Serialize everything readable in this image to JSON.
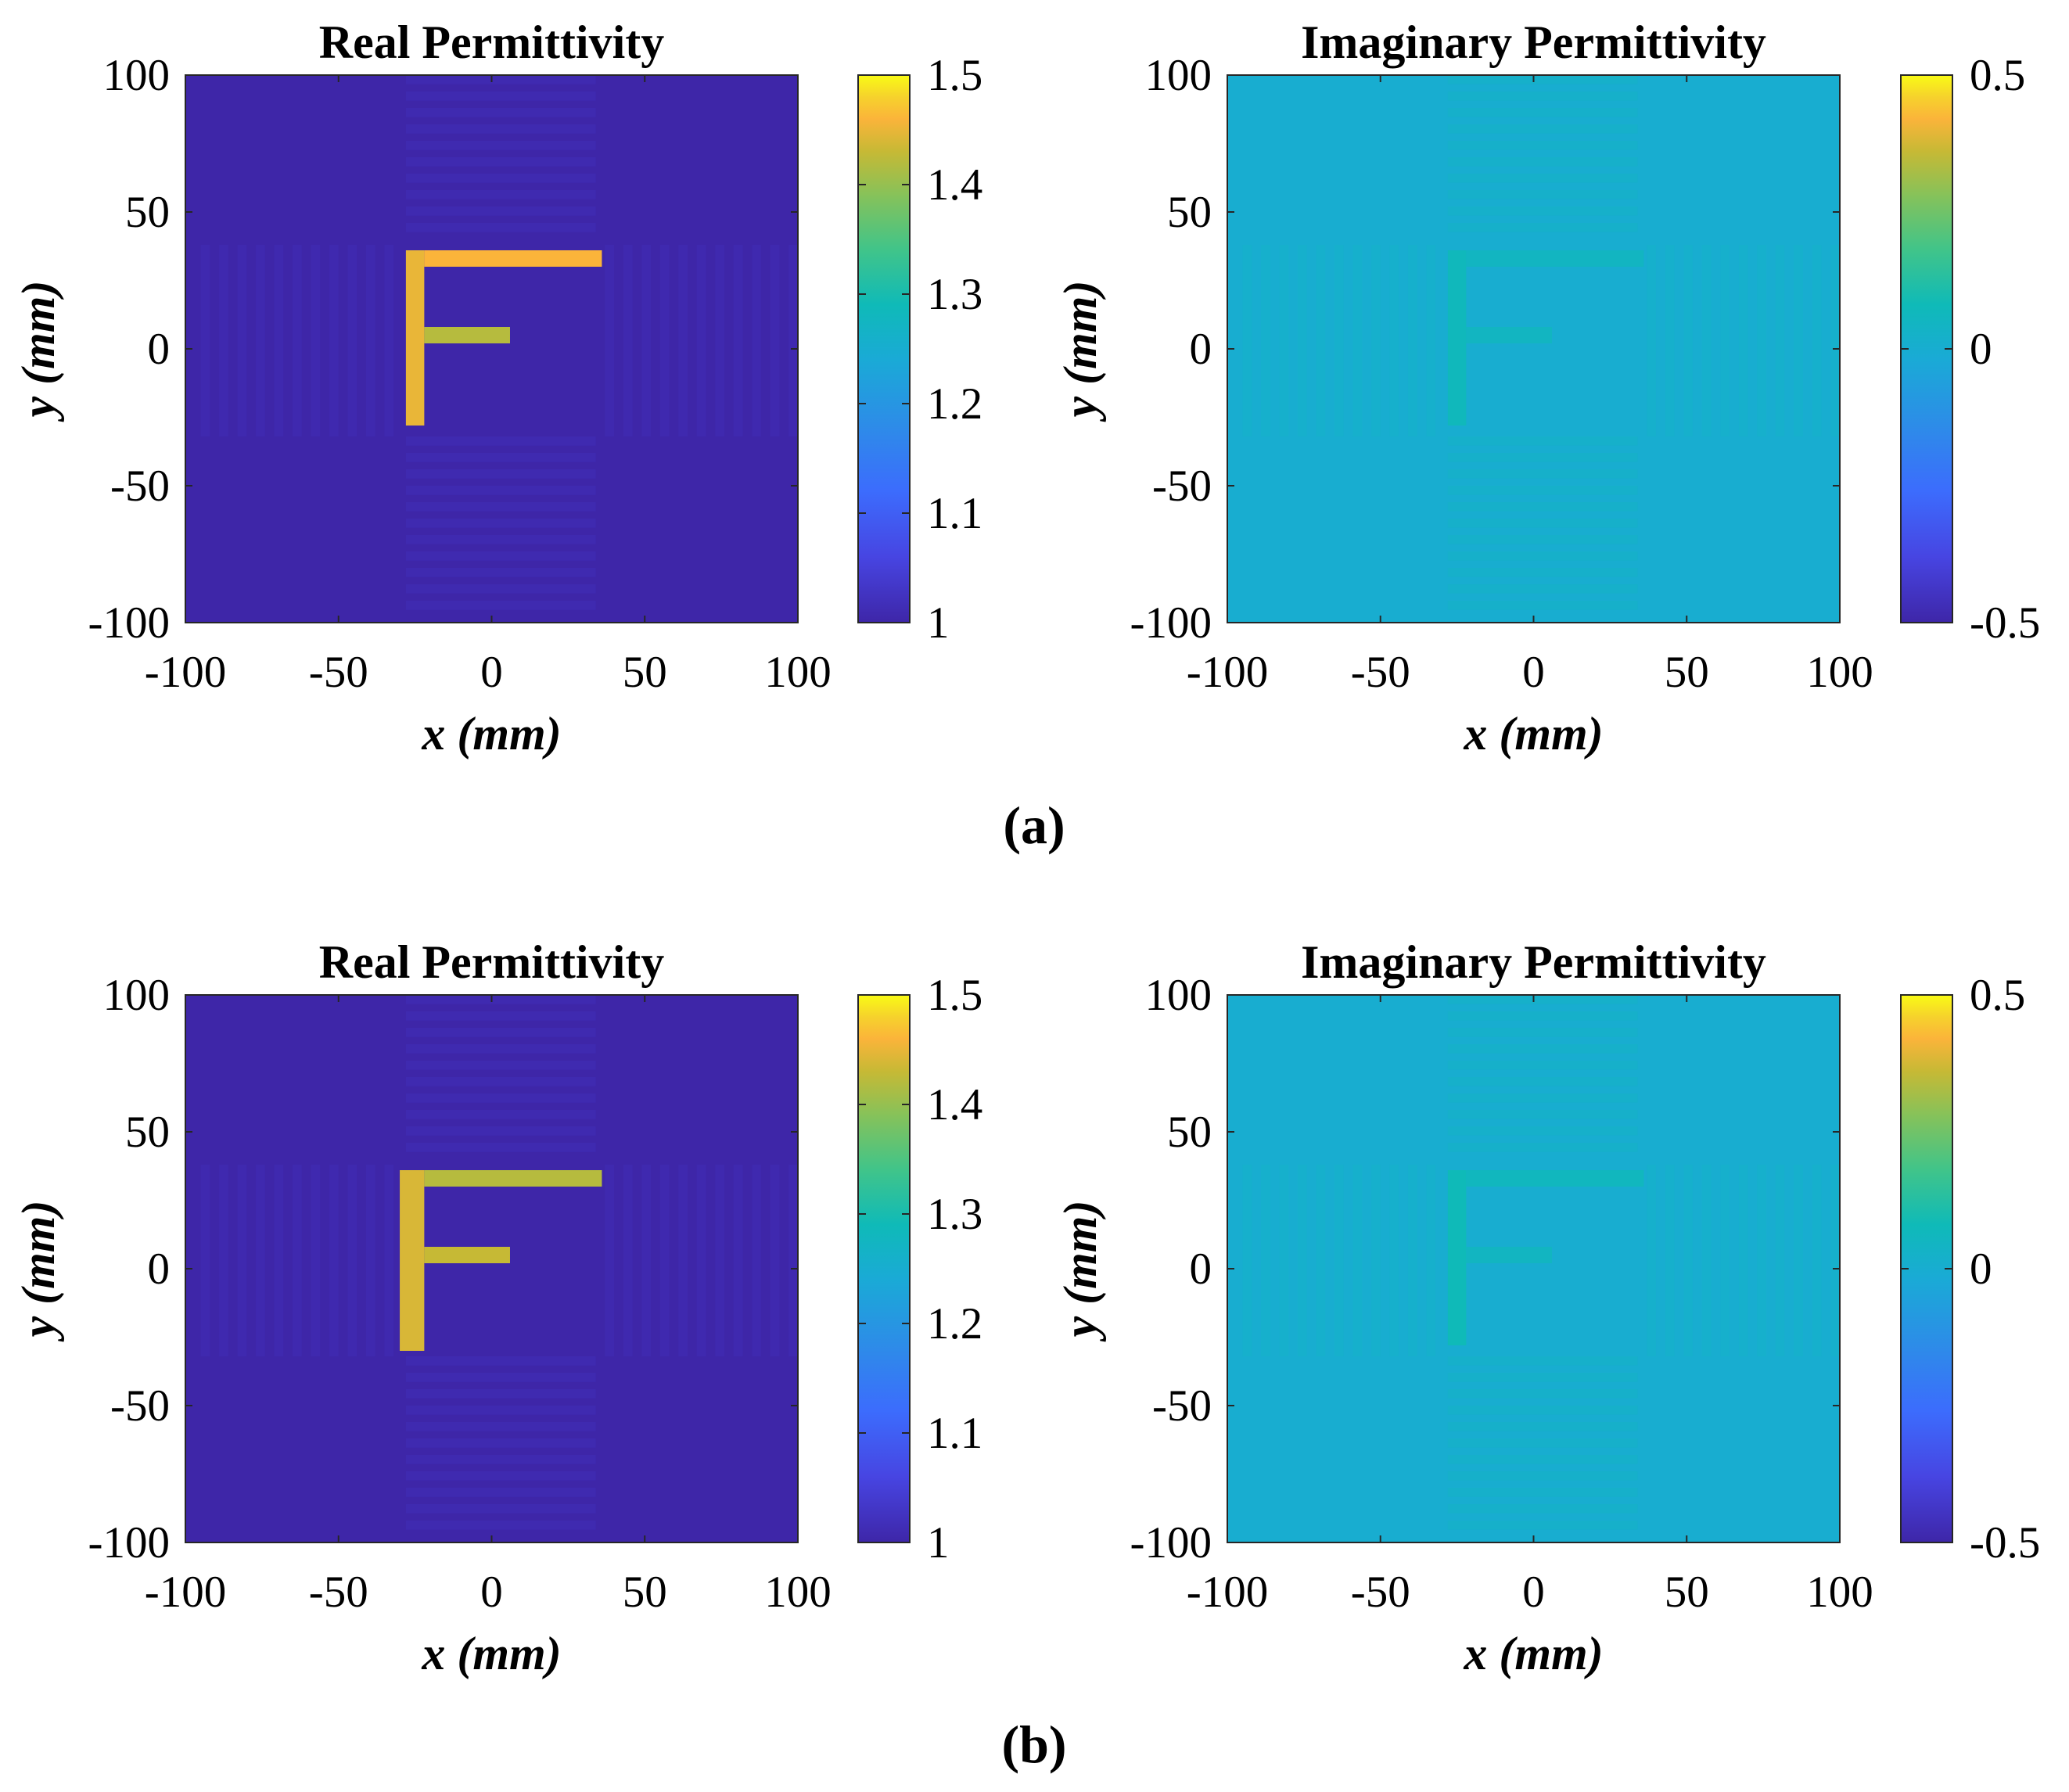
{
  "figure": {
    "captions": [
      "(a)",
      "(b)"
    ]
  },
  "chart_data": [
    {
      "type": "heatmap",
      "panel": "a",
      "title": "Real Permittivity",
      "xlabel": "x (mm)",
      "ylabel": "y (mm)",
      "xlim": [
        -100,
        100
      ],
      "ylim": [
        -100,
        100
      ],
      "xticks": [
        "-100",
        "-50",
        "0",
        "50",
        "100"
      ],
      "yticks": [
        "100",
        "50",
        "0",
        "-50",
        "-100"
      ],
      "xtick_values": [
        -100,
        -50,
        0,
        50,
        100
      ],
      "ytick_values": [
        100,
        50,
        0,
        -50,
        -100
      ],
      "colorbar": {
        "range": [
          1,
          1.5
        ],
        "ticks": [
          "1.5",
          "1.4",
          "1.3",
          "1.2",
          "1.1",
          "1"
        ],
        "tick_values": [
          1.5,
          1.4,
          1.3,
          1.2,
          1.1,
          1
        ]
      },
      "colormap": "parula",
      "background_value": 1.0,
      "features": [
        {
          "part": "vertical-bar",
          "x_range": [
            -28,
            -22
          ],
          "y_range": [
            -28,
            36
          ],
          "value": 1.45
        },
        {
          "part": "top-bar",
          "x_range": [
            -22,
            36
          ],
          "y_range": [
            30,
            36
          ],
          "value": 1.46
        },
        {
          "part": "middle-bar",
          "x_range": [
            -22,
            6
          ],
          "y_range": [
            2,
            8
          ],
          "value": 1.42
        }
      ]
    },
    {
      "type": "heatmap",
      "panel": "a",
      "title": "Imaginary Permittivity",
      "xlabel": "x (mm)",
      "ylabel": "y (mm)",
      "xlim": [
        -100,
        100
      ],
      "ylim": [
        -100,
        100
      ],
      "xticks": [
        "-100",
        "-50",
        "0",
        "50",
        "100"
      ],
      "yticks": [
        "100",
        "50",
        "0",
        "-50",
        "-100"
      ],
      "xtick_values": [
        -100,
        -50,
        0,
        50,
        100
      ],
      "ytick_values": [
        100,
        50,
        0,
        -50,
        -100
      ],
      "colorbar": {
        "range": [
          -0.5,
          0.5
        ],
        "ticks": [
          "0.5",
          "0",
          "-0.5"
        ],
        "tick_values": [
          0.5,
          0,
          -0.5
        ]
      },
      "colormap": "parula",
      "background_value": 0.0,
      "features": [
        {
          "part": "vertical-bar",
          "x_range": [
            -28,
            -22
          ],
          "y_range": [
            -28,
            36
          ],
          "value": 0.07
        },
        {
          "part": "top-bar",
          "x_range": [
            -22,
            36
          ],
          "y_range": [
            30,
            36
          ],
          "value": 0.05
        },
        {
          "part": "middle-bar",
          "x_range": [
            -22,
            6
          ],
          "y_range": [
            2,
            8
          ],
          "value": 0.05
        }
      ]
    },
    {
      "type": "heatmap",
      "panel": "b",
      "title": "Real Permittivity",
      "xlabel": "x (mm)",
      "ylabel": "y (mm)",
      "xlim": [
        -100,
        100
      ],
      "ylim": [
        -100,
        100
      ],
      "xticks": [
        "-100",
        "-50",
        "0",
        "50",
        "100"
      ],
      "yticks": [
        "100",
        "50",
        "0",
        "-50",
        "-100"
      ],
      "xtick_values": [
        -100,
        -50,
        0,
        50,
        100
      ],
      "ytick_values": [
        100,
        50,
        0,
        -50,
        -100
      ],
      "colorbar": {
        "range": [
          1,
          1.5
        ],
        "ticks": [
          "1.5",
          "1.4",
          "1.3",
          "1.2",
          "1.1",
          "1"
        ],
        "tick_values": [
          1.5,
          1.4,
          1.3,
          1.2,
          1.1,
          1
        ]
      },
      "colormap": "parula",
      "background_value": 1.0,
      "features": [
        {
          "part": "vertical-bar",
          "x_range": [
            -30,
            -22
          ],
          "y_range": [
            -30,
            36
          ],
          "value": 1.44
        },
        {
          "part": "top-bar",
          "x_range": [
            -22,
            36
          ],
          "y_range": [
            30,
            36
          ],
          "value": 1.42
        },
        {
          "part": "middle-bar",
          "x_range": [
            -22,
            6
          ],
          "y_range": [
            2,
            8
          ],
          "value": 1.43
        }
      ]
    },
    {
      "type": "heatmap",
      "panel": "b",
      "title": "Imaginary Permittivity",
      "xlabel": "x (mm)",
      "ylabel": "y (mm)",
      "xlim": [
        -100,
        100
      ],
      "ylim": [
        -100,
        100
      ],
      "xticks": [
        "-100",
        "-50",
        "0",
        "50",
        "100"
      ],
      "yticks": [
        "100",
        "50",
        "0",
        "-50",
        "-100"
      ],
      "xtick_values": [
        -100,
        -50,
        0,
        50,
        100
      ],
      "ytick_values": [
        100,
        50,
        0,
        -50,
        -100
      ],
      "colorbar": {
        "range": [
          -0.5,
          0.5
        ],
        "ticks": [
          "0.5",
          "0",
          "-0.5"
        ],
        "tick_values": [
          0.5,
          0,
          -0.5
        ]
      },
      "colormap": "parula",
      "background_value": 0.0,
      "features": [
        {
          "part": "vertical-bar",
          "x_range": [
            -28,
            -22
          ],
          "y_range": [
            -28,
            36
          ],
          "value": 0.08
        },
        {
          "part": "top-bar",
          "x_range": [
            -22,
            36
          ],
          "y_range": [
            30,
            36
          ],
          "value": 0.06
        },
        {
          "part": "middle-bar",
          "x_range": [
            -22,
            6
          ],
          "y_range": [
            2,
            8
          ],
          "value": 0.05
        }
      ]
    }
  ]
}
